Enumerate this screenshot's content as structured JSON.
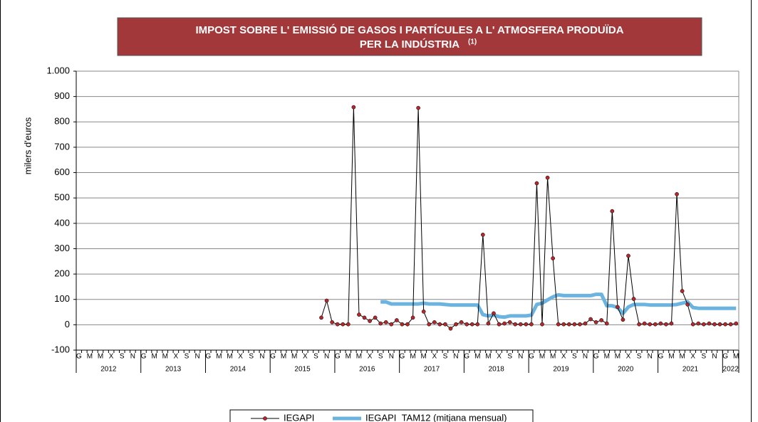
{
  "chart_data": {
    "type": "line",
    "title_lines": [
      "IMPOST SOBRE L' EMISSIÓ DE GASOS I PARTÍCULES  A L' ATMOSFERA PRODUÏDA",
      "PER LA INDÚSTRIA"
    ],
    "title_note": "(1)",
    "ylabel": "milers d'euros",
    "categories": [
      "G",
      null,
      "M",
      null,
      "M",
      null,
      "X",
      null,
      "S",
      null,
      "N",
      null,
      "G",
      null,
      "M",
      null,
      "M",
      null,
      "X",
      null,
      "S",
      null,
      "N",
      null,
      "G",
      null,
      "M",
      null,
      "M",
      null,
      "X",
      null,
      "S",
      null,
      "N",
      null,
      "G",
      null,
      "M",
      null,
      "M",
      null,
      "X",
      null,
      "S",
      null,
      "N",
      null,
      "G",
      null,
      "M",
      null,
      "M",
      null,
      "X",
      null,
      "S",
      null,
      "N",
      null,
      "G",
      null,
      "M",
      null,
      "M",
      null,
      "X",
      null,
      "S",
      null,
      "N",
      null,
      "G",
      null,
      "M",
      null,
      "M",
      null,
      "X",
      null,
      "S",
      null,
      "N",
      null,
      "G",
      null,
      "M",
      null,
      "M",
      null,
      "X",
      null,
      "S",
      null,
      "N",
      null,
      "G",
      null,
      "M",
      null,
      "M",
      null,
      "X",
      null,
      "S",
      null,
      "N",
      null,
      "G",
      null,
      "M",
      null,
      "M",
      null,
      "X",
      null,
      "S",
      null,
      "N",
      null,
      "G",
      null,
      "M"
    ],
    "years": [
      "2012",
      "2013",
      "2014",
      "2015",
      "2016",
      "2017",
      "2018",
      "2019",
      "2020",
      "2021",
      "2022"
    ],
    "series": [
      {
        "name": "IEGAPI",
        "color": "#000000",
        "marker_color": "#b2282d",
        "values": [
          null,
          null,
          null,
          null,
          null,
          null,
          null,
          null,
          null,
          null,
          null,
          null,
          null,
          null,
          null,
          null,
          null,
          null,
          null,
          null,
          null,
          null,
          null,
          null,
          null,
          null,
          null,
          null,
          null,
          null,
          null,
          null,
          null,
          null,
          null,
          null,
          null,
          null,
          null,
          null,
          null,
          null,
          null,
          null,
          null,
          28,
          95,
          10,
          2,
          2,
          2,
          858,
          40,
          28,
          15,
          28,
          5,
          10,
          2,
          18,
          2,
          2,
          28,
          855,
          52,
          2,
          10,
          2,
          2,
          -15,
          2,
          10,
          2,
          2,
          2,
          355,
          5,
          45,
          2,
          5,
          10,
          2,
          2,
          2,
          2,
          558,
          2,
          580,
          262,
          2,
          2,
          2,
          2,
          2,
          5,
          22,
          10,
          18,
          5,
          448,
          70,
          20,
          272,
          102,
          2,
          5,
          2,
          2,
          5,
          2,
          5,
          515,
          133,
          80,
          2,
          5,
          2,
          5,
          2,
          2,
          2,
          2,
          5
        ]
      },
      {
        "name": "IEGAPI_TAM12 (mitjana mensual)",
        "color": "#6cb4e0",
        "values": [
          null,
          null,
          null,
          null,
          null,
          null,
          null,
          null,
          null,
          null,
          null,
          null,
          null,
          null,
          null,
          null,
          null,
          null,
          null,
          null,
          null,
          null,
          null,
          null,
          null,
          null,
          null,
          null,
          null,
          null,
          null,
          null,
          null,
          null,
          null,
          null,
          null,
          null,
          null,
          null,
          null,
          null,
          null,
          null,
          null,
          null,
          null,
          null,
          null,
          null,
          null,
          null,
          null,
          null,
          null,
          null,
          90,
          90,
          82,
          82,
          82,
          82,
          82,
          82,
          85,
          82,
          82,
          82,
          80,
          78,
          78,
          78,
          78,
          78,
          78,
          40,
          35,
          38,
          32,
          30,
          35,
          35,
          35,
          35,
          38,
          80,
          85,
          98,
          110,
          118,
          115,
          115,
          115,
          115,
          115,
          115,
          120,
          120,
          75,
          75,
          68,
          45,
          70,
          80,
          80,
          80,
          78,
          78,
          78,
          78,
          78,
          80,
          85,
          90,
          68,
          65,
          65,
          65,
          65,
          65,
          65,
          65,
          65
        ]
      }
    ],
    "ylim": [
      -100,
      1000
    ],
    "yticks": [
      -100,
      0,
      100,
      200,
      300,
      400,
      500,
      600,
      700,
      800,
      900,
      {
        "value": 1000,
        "label": "1.000"
      }
    ],
    "grid": true
  }
}
